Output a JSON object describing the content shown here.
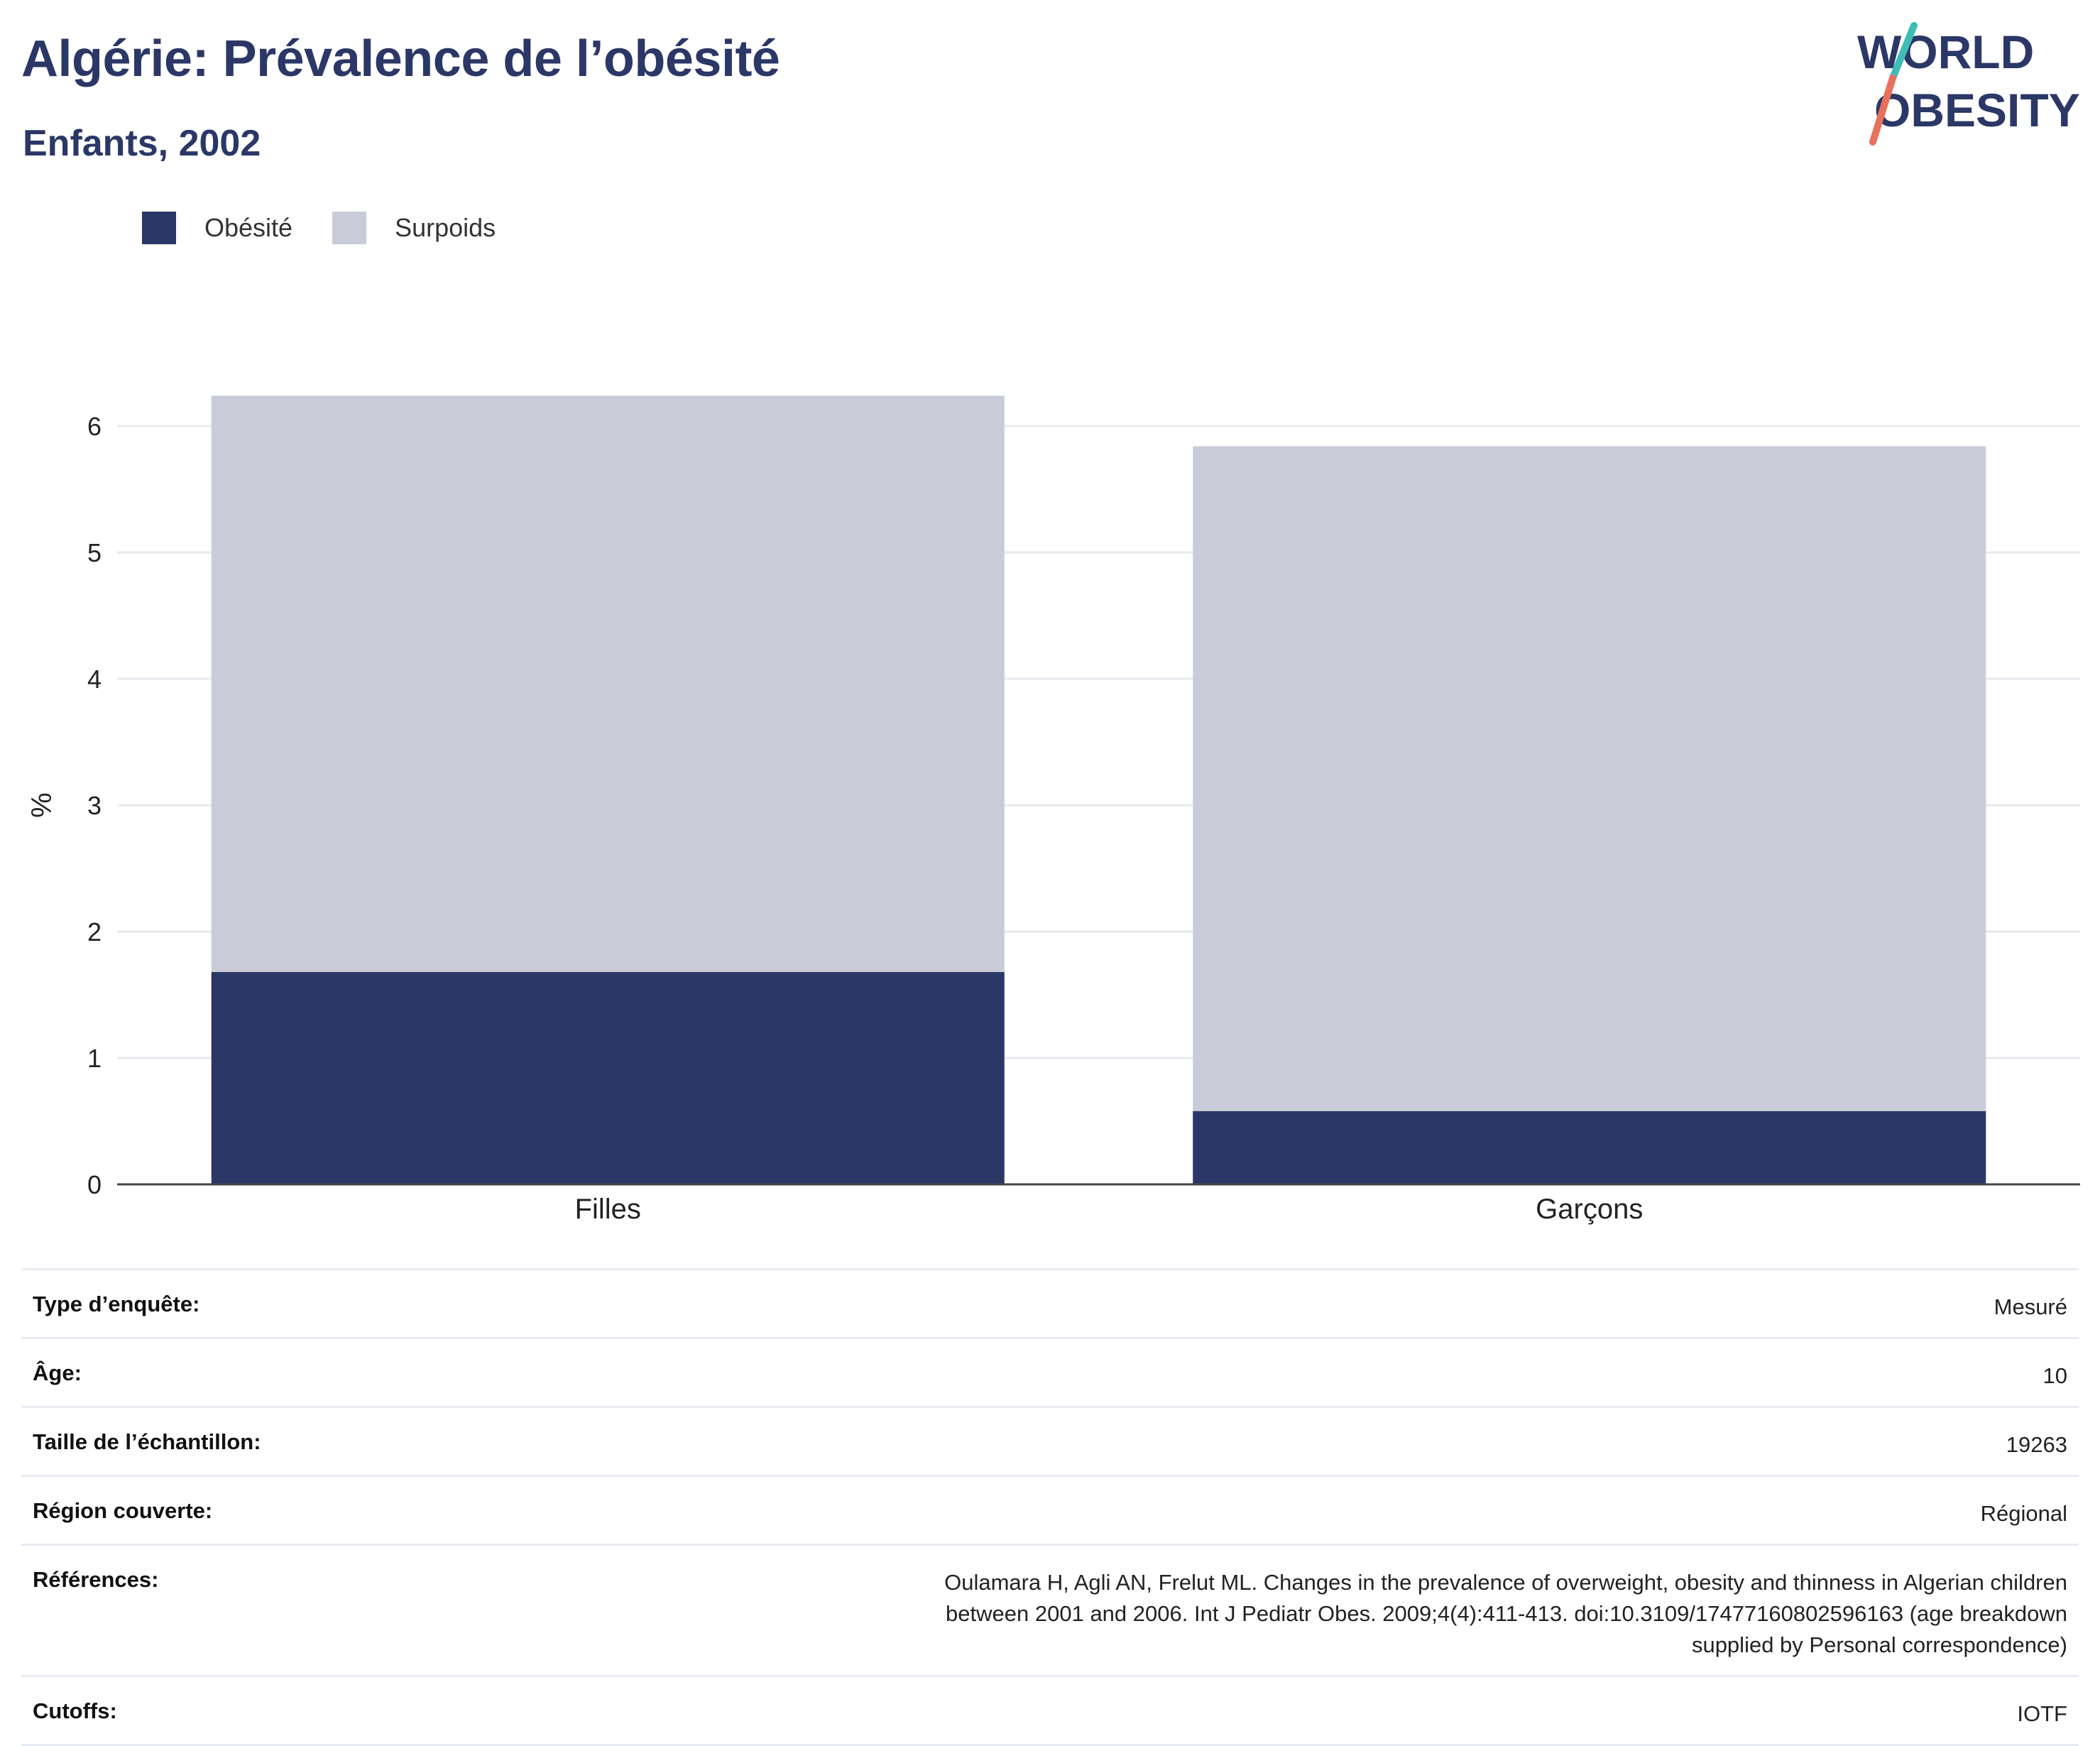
{
  "header": {
    "title": "Algérie: Prévalence de l’obésité",
    "subtitle": "Enfants, 2002",
    "logo_text": [
      "WORLD",
      "OBESITY"
    ]
  },
  "colors": {
    "obesity": "#2b3766",
    "overweight": "#c9ccd8",
    "title": "#2b3766",
    "logo_slash_top": "#3dbdb5",
    "logo_slash_bottom": "#e8705c"
  },
  "chart_data": {
    "type": "bar",
    "stacked": true,
    "categories": [
      "Filles",
      "Garçons"
    ],
    "series": [
      {
        "name": "Obésité",
        "values": [
          1.68,
          0.58
        ]
      },
      {
        "name": "Surpoids",
        "values": [
          4.56,
          5.26
        ]
      }
    ],
    "ylabel": "%",
    "ylim": [
      0,
      6.3
    ],
    "yticks": [
      0,
      1,
      2,
      3,
      4,
      5,
      6
    ],
    "grid": true,
    "legend_position": "top-left"
  },
  "info": [
    {
      "label": "Type d’enquête:",
      "value": "Mesuré"
    },
    {
      "label": "Âge:",
      "value": "10"
    },
    {
      "label": "Taille de l’échantillon:",
      "value": "19263"
    },
    {
      "label": "Région couverte:",
      "value": "Régional"
    },
    {
      "label": "Références:",
      "value": "Oulamara H, Agli AN, Frelut ML. Changes in the prevalence of overweight, obesity and thinness in Algerian children between 2001 and 2006. Int J Pediatr Obes. 2009;4(4):411-413. doi:10.3109/17477160802596163 (age breakdown supplied by Personal correspondence)"
    },
    {
      "label": "Cutoffs:",
      "value": "IOTF"
    }
  ]
}
